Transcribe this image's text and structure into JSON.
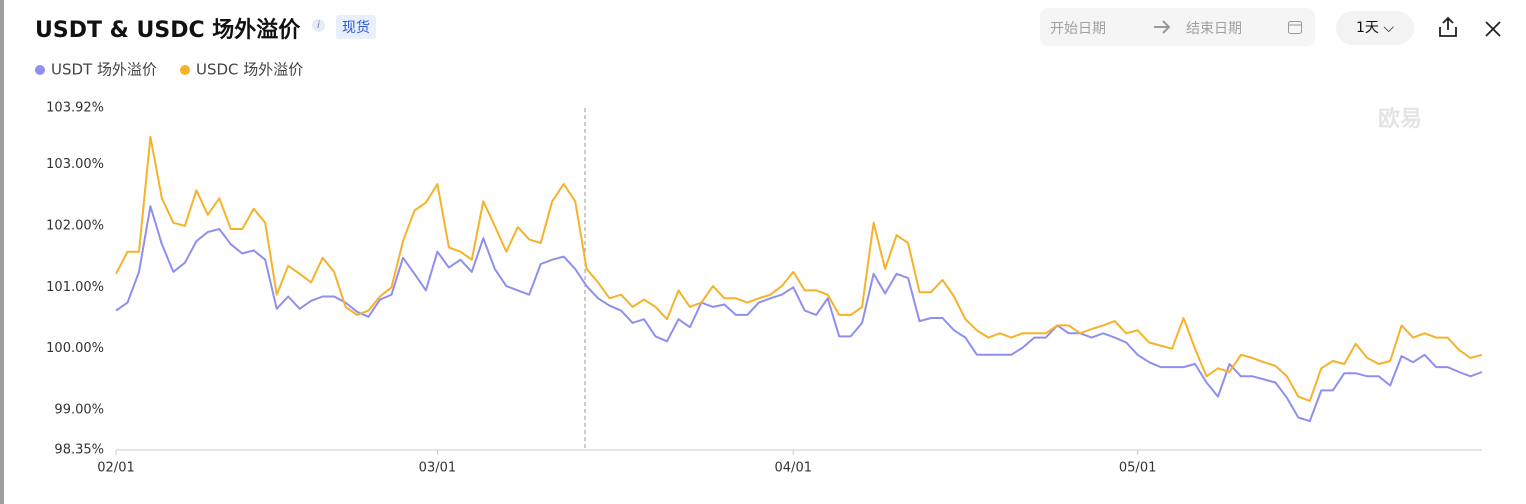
{
  "header": {
    "title": "USDT & USDC 场外溢价",
    "badge": "现货",
    "start_date": "开始日期",
    "end_date": "结束日期",
    "interval": "1天"
  },
  "chart_data": {
    "type": "line",
    "watermark": "欧易",
    "categories": [
      "02/01",
      null,
      null,
      null,
      null,
      null,
      null,
      null,
      null,
      null,
      null,
      null,
      null,
      null,
      null,
      null,
      null,
      null,
      null,
      null,
      null,
      null,
      null,
      null,
      null,
      null,
      null,
      null,
      "03/01",
      null,
      null,
      null,
      null,
      null,
      null,
      null,
      null,
      null,
      null,
      null,
      null,
      null,
      null,
      null,
      null,
      null,
      null,
      null,
      null,
      null,
      null,
      null,
      null,
      null,
      null,
      null,
      null,
      null,
      null,
      "04/01",
      null,
      null,
      null,
      null,
      null,
      null,
      null,
      null,
      null,
      null,
      null,
      null,
      null,
      null,
      null,
      null,
      null,
      null,
      null,
      null,
      null,
      null,
      null,
      null,
      null,
      null,
      null,
      null,
      null,
      "05/01",
      null,
      null,
      null,
      null,
      null,
      null,
      null,
      null,
      null,
      null,
      null,
      null,
      null,
      null,
      null,
      null,
      null,
      null,
      null,
      null,
      null,
      null,
      null,
      null,
      null,
      null,
      null,
      null,
      null,
      null
    ],
    "series": [
      {
        "name": "USDT 场外溢价",
        "color": "#8f8ff0",
        "values": [
          100.62,
          100.75,
          101.25,
          102.32,
          101.7,
          101.25,
          101.4,
          101.75,
          101.9,
          101.95,
          101.7,
          101.55,
          101.6,
          101.45,
          100.65,
          100.85,
          100.65,
          100.78,
          100.85,
          100.85,
          100.75,
          100.6,
          100.52,
          100.8,
          100.88,
          101.48,
          101.22,
          100.95,
          101.58,
          101.32,
          101.45,
          101.25,
          101.8,
          101.3,
          101.02,
          100.95,
          100.88,
          101.38,
          101.45,
          101.5,
          101.3,
          101.02,
          100.82,
          100.7,
          100.62,
          100.42,
          100.48,
          100.2,
          100.12,
          100.48,
          100.35,
          100.75,
          100.68,
          100.72,
          100.55,
          100.55,
          100.75,
          100.82,
          100.88,
          101.0,
          100.62,
          100.55,
          100.82,
          100.2,
          100.2,
          100.42,
          101.22,
          100.9,
          101.22,
          101.15,
          100.45,
          100.5,
          100.5,
          100.3,
          100.18,
          99.9,
          99.9,
          99.9,
          99.9,
          100.02,
          100.18,
          100.18,
          100.38,
          100.25,
          100.25,
          100.18,
          100.25,
          100.18,
          100.1,
          99.9,
          99.78,
          99.7,
          99.7,
          99.7,
          99.75,
          99.45,
          99.22,
          99.75,
          99.55,
          99.55,
          99.5,
          99.45,
          99.2,
          98.88,
          98.82,
          99.32,
          99.32,
          99.6,
          99.6,
          99.55,
          99.55,
          99.4,
          99.88,
          99.78,
          99.9,
          99.7,
          99.7,
          99.62,
          99.55,
          99.62
        ]
      },
      {
        "name": "USDC 场外溢价",
        "color": "#f5b22a",
        "values": [
          101.22,
          101.58,
          101.58,
          103.45,
          102.45,
          102.05,
          102.0,
          102.58,
          102.18,
          102.45,
          101.95,
          101.95,
          102.28,
          102.05,
          100.88,
          101.35,
          101.22,
          101.08,
          101.48,
          101.25,
          100.68,
          100.55,
          100.62,
          100.85,
          101.0,
          101.75,
          102.25,
          102.38,
          102.68,
          101.65,
          101.58,
          101.45,
          102.4,
          102.0,
          101.58,
          101.98,
          101.78,
          101.72,
          102.4,
          102.68,
          102.4,
          101.3,
          101.08,
          100.82,
          100.88,
          100.68,
          100.8,
          100.68,
          100.48,
          100.95,
          100.68,
          100.75,
          101.02,
          100.82,
          100.82,
          100.75,
          100.82,
          100.88,
          101.02,
          101.25,
          100.95,
          100.95,
          100.88,
          100.55,
          100.55,
          100.68,
          102.05,
          101.3,
          101.85,
          101.72,
          100.92,
          100.92,
          101.12,
          100.85,
          100.48,
          100.3,
          100.18,
          100.25,
          100.18,
          100.25,
          100.25,
          100.25,
          100.38,
          100.38,
          100.25,
          100.32,
          100.38,
          100.45,
          100.25,
          100.3,
          100.1,
          100.05,
          100.0,
          100.5,
          100.0,
          99.55,
          99.68,
          99.62,
          99.9,
          99.85,
          99.78,
          99.72,
          99.55,
          99.22,
          99.15,
          99.68,
          99.8,
          99.75,
          100.08,
          99.85,
          99.75,
          99.8,
          100.38,
          100.18,
          100.25,
          100.18,
          100.18,
          99.98,
          99.85,
          99.9
        ]
      }
    ],
    "ylim": [
      98.35,
      103.92
    ],
    "yticks": [
      {
        "value": 98.35,
        "label": "98.35%"
      },
      {
        "value": 99,
        "label": "99.00%"
      },
      {
        "value": 100,
        "label": "100.00%"
      },
      {
        "value": 101,
        "label": "101.00%"
      },
      {
        "value": 102,
        "label": "102.00%"
      },
      {
        "value": 103,
        "label": "103.00%"
      },
      {
        "value": 103.92,
        "label": "103.92%"
      }
    ],
    "grid": false
  }
}
